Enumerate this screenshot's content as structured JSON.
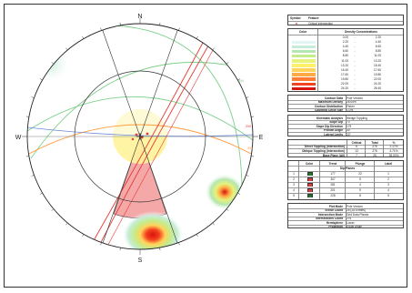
{
  "stereonet": {
    "north_label": "N",
    "south_label": "S",
    "east_label": "E",
    "west_label": "W",
    "plane_labels": [
      "1W",
      "2W",
      "3W"
    ],
    "colors": {
      "north_arrow_outline": "#333333",
      "sector_wedge": "#f4a8a8",
      "cone_fill": "#fff39a",
      "contour_green": "#c9eac6",
      "contour_yellow": "#ffe066",
      "contour_red": "#e8221a",
      "planes_green": "#7ccf8a",
      "planes_red": "#e53935",
      "planes_orange": "#ff9a3c",
      "planes_blue": "#6a8ad6"
    }
  },
  "legend": {
    "header_label": "Symbol",
    "header_value": "Feature",
    "symbol_entry": "Critical Intersection",
    "symbol_color": "#e53935"
  },
  "density": {
    "col_color": "Color",
    "col_conc": "Density Concentrations",
    "rows": [
      {
        "color": "#ffffff",
        "from": "0.00",
        "to": "2.20"
      },
      {
        "color": "#e3f4f4",
        "from": "2.20",
        "to": "4.40"
      },
      {
        "color": "#c7ecd9",
        "from": "4.40",
        "to": "6.60"
      },
      {
        "color": "#b4e6b0",
        "from": "6.60",
        "to": "8.80"
      },
      {
        "color": "#c5ec8b",
        "from": "8.80",
        "to": "11.00"
      },
      {
        "color": "#e6f27a",
        "from": "11.00",
        "to": "13.20"
      },
      {
        "color": "#fff06a",
        "from": "13.20",
        "to": "15.40"
      },
      {
        "color": "#ffd35a",
        "from": "15.40",
        "to": "17.60"
      },
      {
        "color": "#ffaa45",
        "from": "17.60",
        "to": "19.80"
      },
      {
        "color": "#ff7a33",
        "from": "19.80",
        "to": "22.00"
      },
      {
        "color": "#f5421f",
        "from": "22.00",
        "to": "24.20"
      },
      {
        "color": "#d8140f",
        "from": "24.20",
        "to": "26.40"
      }
    ]
  },
  "properties": [
    {
      "label": "Contour Data",
      "value": "Pole Vectors"
    },
    {
      "label": "Maximum Density",
      "value": "26.05%"
    },
    {
      "label": "Contour Distribution",
      "value": "Fisher"
    },
    {
      "label": "Counting Circle Size",
      "value": "1.0%"
    }
  ],
  "kinematic": [
    {
      "label": "Kinematic Analysis",
      "value": "Wedge Toppling"
    },
    {
      "label": "Slope Dip",
      "value": "70"
    },
    {
      "label": "Slope Dip Direction",
      "value": "175"
    },
    {
      "label": "Friction Angle",
      "value": "30°"
    },
    {
      "label": "Lateral Limits",
      "value": "20°"
    }
  ],
  "critical": {
    "headers": [
      "",
      "Critical",
      "Total",
      "%"
    ],
    "rows": [
      [
        "Direct Toppling (Intersection)",
        "6",
        "276",
        "2.17%"
      ],
      [
        "Oblique Toppling (Intersection)",
        "13",
        "276",
        "4.71%"
      ],
      [
        "Base Plane (All)",
        "7",
        "25",
        "28.00%"
      ]
    ]
  },
  "sets": {
    "headers": [
      "Color",
      "Trend",
      "Plunge",
      "Label"
    ],
    "title": "Dip Planes",
    "rows": [
      {
        "id": "1",
        "color": "#1b7a2a",
        "trend": "177",
        "plunge": "22",
        "label": "1"
      },
      {
        "id": "2",
        "color": "#e53935",
        "trend": "307",
        "plunge": "5",
        "label": "2"
      },
      {
        "id": "3",
        "color": "#e53935",
        "trend": "281",
        "plunge": "4",
        "label": "3"
      },
      {
        "id": "4",
        "color": "#e53935",
        "trend": "201",
        "plunge": "5",
        "label": "4"
      },
      {
        "id": "5",
        "color": "#1b7a2a",
        "trend": "228",
        "plunge": "8",
        "label": "5"
      }
    ]
  },
  "meta": [
    {
      "label": "Plot Mode",
      "value": "Pole Vectors"
    },
    {
      "label": "Vector Count",
      "value": "25 (25 Entries)"
    },
    {
      "label": "Intersection Mode",
      "value": "Grid Data Planes"
    },
    {
      "label": "Intersections Count",
      "value": "276"
    },
    {
      "label": "Hemisphere",
      "value": "Lower"
    },
    {
      "label": "Projection",
      "value": "Equal Angle"
    }
  ]
}
